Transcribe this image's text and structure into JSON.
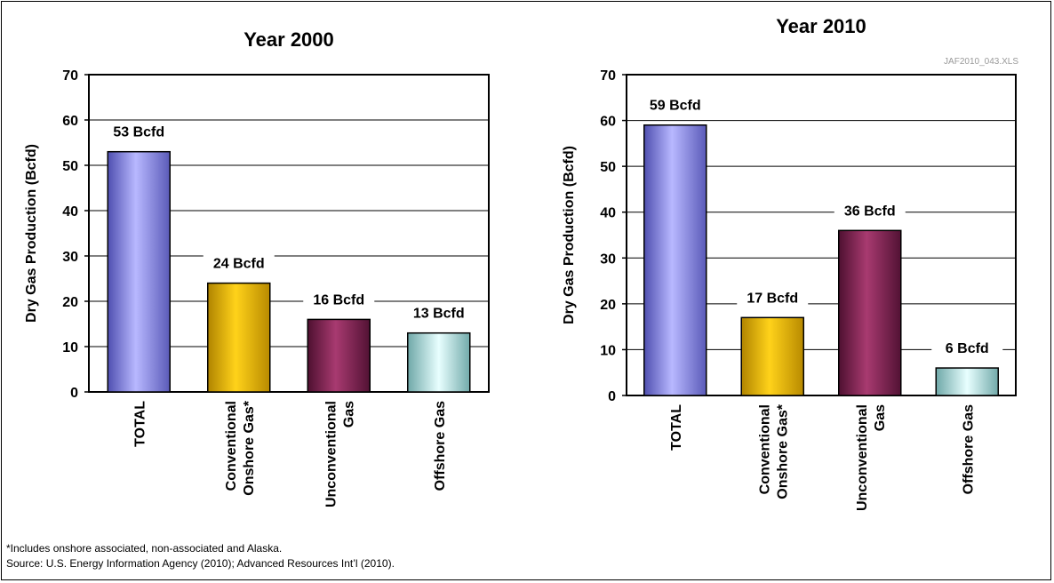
{
  "chart_data": [
    {
      "type": "bar",
      "title": "Year 2000",
      "ylabel": "Dry Gas Production (Bcfd)",
      "xlabel": "",
      "ylim": [
        0,
        70
      ],
      "yticks": [
        0,
        10,
        20,
        30,
        40,
        50,
        60,
        70
      ],
      "grid": true,
      "categories": [
        [
          "TOTAL"
        ],
        [
          "Conventional",
          "Onshore Gas*"
        ],
        [
          "Unconventional",
          "Gas"
        ],
        [
          "Offshore Gas"
        ]
      ],
      "values": [
        53,
        24,
        16,
        13
      ],
      "data_labels": [
        "53 Bcfd",
        "24 Bcfd",
        "16 Bcfd",
        "13 Bcfd"
      ],
      "colors": [
        "#8f8fe6",
        "#f5c400",
        "#8b2a5a",
        "#bfeaea"
      ]
    },
    {
      "type": "bar",
      "title": "Year 2010",
      "ylabel": "Dry Gas Production (Bcfd)",
      "xlabel": "",
      "ylim": [
        0,
        70
      ],
      "yticks": [
        0,
        10,
        20,
        30,
        40,
        50,
        60,
        70
      ],
      "grid": true,
      "categories": [
        [
          "TOTAL"
        ],
        [
          "Conventional",
          "Onshore Gas*"
        ],
        [
          "Unconventional",
          "Gas"
        ],
        [
          "Offshore Gas"
        ]
      ],
      "values": [
        59,
        17,
        36,
        6
      ],
      "data_labels": [
        "59 Bcfd",
        "17 Bcfd",
        "36 Bcfd",
        "6 Bcfd"
      ],
      "colors": [
        "#8f8fe6",
        "#f5c400",
        "#8b2a5a",
        "#bfeaea"
      ]
    }
  ],
  "file_reference": "JAF2010_043.XLS",
  "footnote": "*Includes onshore associated, non-associated and Alaska.",
  "source": "Source: U.S. Energy Information Agency (2010); Advanced Resources Int’l (2010)."
}
